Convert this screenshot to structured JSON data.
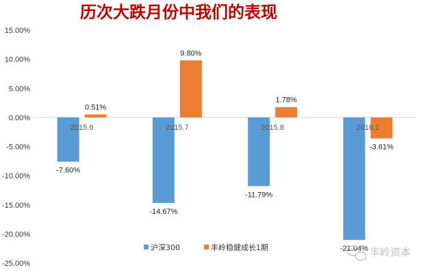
{
  "chart_data": {
    "type": "bar",
    "title": "历次大跌月份中我们的表现",
    "categories": [
      "2015.6",
      "2015.7",
      "2015.8",
      "2016.1"
    ],
    "series": [
      {
        "name": "沪深300",
        "values": [
          -7.6,
          -14.67,
          -11.79,
          -21.04
        ],
        "labels": [
          "-7.60%",
          "-14.67%",
          "-11.79%",
          "-21.04%"
        ]
      },
      {
        "name": "丰岭稳健成长1期",
        "values": [
          0.51,
          9.8,
          1.78,
          -3.61
        ],
        "labels": [
          "0.51%",
          "9.80%",
          "1.78%",
          "-3.61%"
        ]
      }
    ],
    "ylim": [
      -25,
      15
    ],
    "yticks": [
      "15.00%",
      "10.00%",
      "5.00%",
      "0.00%",
      "-5.00%",
      "-10.00%",
      "-15.00%",
      "-20.00%",
      "-25.00%"
    ],
    "xlabel": "",
    "ylabel": "",
    "grid": false,
    "legend_position": "bottom-center"
  },
  "colors": {
    "series1": "#5b9bd5",
    "series2": "#ed7d31",
    "axis": "#d0d0d0",
    "title": "#c00000"
  },
  "watermark": {
    "icon": "wechat-icon",
    "text": "丰岭资本"
  }
}
